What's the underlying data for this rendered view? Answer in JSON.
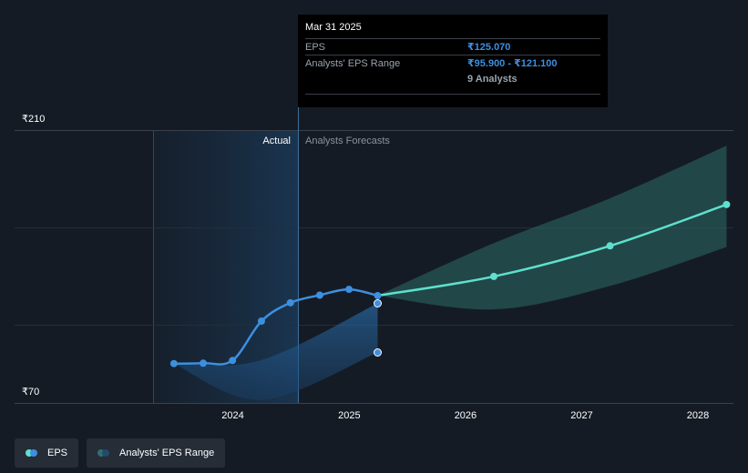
{
  "chart_data": {
    "type": "line",
    "y_tick_labels": [
      "₹210",
      "₹70"
    ],
    "ylim": [
      70,
      210
    ],
    "x_tick_labels": [
      "2024",
      "2025",
      "2026",
      "2027",
      "2028"
    ],
    "region_labels": {
      "actual": "Actual",
      "forecast": "Analysts Forecasts"
    },
    "series": [
      {
        "name": "EPS",
        "color": "#3d8fe0",
        "points": [
          {
            "x": "2023-06-30",
            "y": 90.2
          },
          {
            "x": "2023-09-30",
            "y": 90.4
          },
          {
            "x": "2023-12-31",
            "y": 91.8
          },
          {
            "x": "2024-03-31",
            "y": 112.0
          },
          {
            "x": "2024-06-30",
            "y": 121.4
          },
          {
            "x": "2024-09-30",
            "y": 125.3
          },
          {
            "x": "2024-12-31",
            "y": 128.3
          },
          {
            "x": "2025-03-31",
            "y": 125.07
          }
        ]
      },
      {
        "name": "EPS",
        "color": "#5ee0cc",
        "points": [
          {
            "x": "2025-03-31",
            "y": 125.07
          },
          {
            "x": "2026-03-31",
            "y": 134.9
          },
          {
            "x": "2027-03-31",
            "y": 150.6
          },
          {
            "x": "2028-03-31",
            "y": 171.8
          }
        ]
      }
    ],
    "range": {
      "name": "Analysts' EPS Range",
      "actual_band": {
        "x": [
          "2023-06-30",
          "2024-03-31",
          "2025-03-31"
        ],
        "low": [
          90.2,
          71.5,
          95.9
        ],
        "high": [
          90.2,
          92.0,
          121.1
        ]
      },
      "actual_markers": [
        121.1,
        95.9
      ],
      "forecast_band": {
        "x": [
          "2025-03-31",
          "2026-03-31",
          "2027-03-31",
          "2028-03-31"
        ],
        "low": [
          125.07,
          118.0,
          130.0,
          150.0
        ],
        "high": [
          125.07,
          152.0,
          175.0,
          202.0
        ]
      }
    },
    "grid": true
  },
  "tooltip": {
    "date": "Mar 31 2025",
    "rows": [
      {
        "label": "EPS",
        "value": "₹125.070"
      },
      {
        "label": "Analysts' EPS Range",
        "value": "₹95.900 - ₹121.100"
      },
      {
        "label": "",
        "value": "9 Analysts"
      }
    ]
  },
  "legend": [
    {
      "label": "EPS",
      "colors": [
        "#5ee0cc",
        "#3d8fe0"
      ]
    },
    {
      "label": "Analysts' EPS Range",
      "colors": [
        "#2f6f72",
        "#234a6a"
      ]
    }
  ]
}
